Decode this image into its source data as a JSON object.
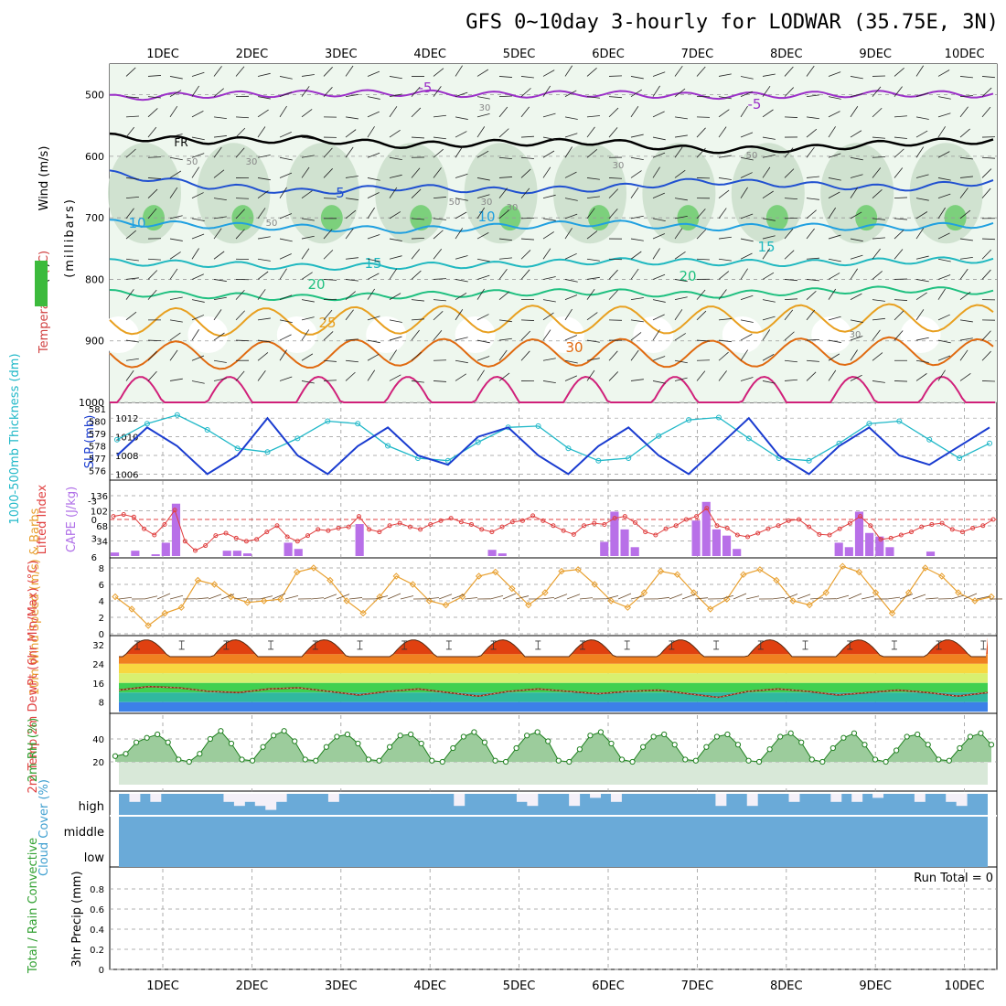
{
  "title": "GFS 0~10day 3-hourly for LODWAR (35.75E, 3N)",
  "dates": [
    "1DEC",
    "2DEC",
    "3DEC",
    "4DEC",
    "5DEC",
    "6DEC",
    "7DEC",
    "8DEC",
    "9DEC",
    "10DEC"
  ],
  "run_total": "Run Total = 0",
  "chart_data": [
    {
      "type": "line",
      "panel": "upper-air cross section",
      "ylabel_wind": "Wind (m/s)",
      "ylabel_temp": "Temperature (°C)",
      "ylabel_rh": "RH (%)",
      "ylabel_p": "(millibars)",
      "yticks": [
        "500",
        "600",
        "700",
        "800",
        "900",
        "1000"
      ],
      "ylim": [
        1000,
        450
      ],
      "freezing_label": "FR",
      "isotherms": [
        {
          "name": "-5",
          "color": "#9b30c8",
          "p": [
            505,
            500,
            498,
            497,
            500,
            498,
            502,
            500,
            498,
            500
          ]
        },
        {
          "name": "FR",
          "color": "#000000",
          "p": [
            568,
            575,
            572,
            582,
            578,
            576,
            590,
            588,
            578,
            574
          ]
        },
        {
          "name": "5",
          "color": "#2050d0",
          "p": [
            628,
            648,
            658,
            650,
            656,
            652,
            640,
            646,
            652,
            640
          ]
        },
        {
          "name": "10",
          "color": "#20a0e0",
          "p": [
            708,
            712,
            716,
            720,
            714,
            708,
            716,
            714,
            716,
            710
          ]
        },
        {
          "name": "15",
          "color": "#20b8c0",
          "p": [
            772,
            775,
            780,
            778,
            776,
            770,
            772,
            774,
            770,
            768
          ]
        },
        {
          "name": "20",
          "color": "#20c080",
          "p": [
            822,
            826,
            830,
            826,
            822,
            820,
            826,
            820,
            816,
            820
          ]
        },
        {
          "name": "25",
          "color": "#e8a020",
          "p": [
            866,
            870,
            868,
            866,
            864,
            866,
            866,
            864,
            862,
            864
          ]
        },
        {
          "name": "30",
          "color": "#e06a10",
          "p": [
            920,
            924,
            922,
            918,
            920,
            918,
            922,
            918,
            916,
            920
          ]
        }
      ],
      "isotherm_labels": [
        "-5",
        "-5",
        "5",
        "10",
        "10",
        "15",
        "15",
        "20",
        "20",
        "25",
        "30"
      ],
      "rh_labels": [
        "30",
        "50",
        "30",
        "50",
        "50",
        "30",
        "30",
        "50",
        "30",
        "30"
      ]
    },
    {
      "type": "line",
      "panel": "thickness and SLP",
      "ylabel_left": "1000-500mb Thickness (dm)",
      "ylabel_right": "SLP (mb)",
      "left_ticks": [
        "581",
        "580",
        "579",
        "578",
        "577",
        "576"
      ],
      "right_ticks": [
        "1012",
        "1010",
        "1008",
        "1006"
      ],
      "series": [
        {
          "name": "Thickness",
          "color": "#20b8c8",
          "values": [
            578.5,
            579.8,
            580.5,
            579.3,
            577.8,
            577.5,
            578.6,
            580.0,
            579.8,
            578.0,
            577.0,
            576.8,
            578.3,
            579.5,
            579.6,
            577.8,
            576.8,
            577.0,
            578.8,
            580.1,
            580.3,
            578.6,
            577.0,
            576.8,
            578.2,
            579.8,
            580.0,
            578.5,
            577.0,
            578.2
          ]
        },
        {
          "name": "SLP",
          "color": "#1a3cd0",
          "values": [
            1008,
            1011,
            1009,
            1006,
            1008,
            1012,
            1008,
            1006,
            1009,
            1011,
            1008,
            1007,
            1010,
            1011,
            1008,
            1006,
            1009,
            1011,
            1008,
            1006,
            1009,
            1012,
            1008,
            1006,
            1009,
            1011,
            1008,
            1007,
            1009,
            1011
          ]
        }
      ]
    },
    {
      "type": "bar",
      "panel": "CAPE and Lifted Index",
      "ylabel_left": "Lifted Index",
      "ylabel_right": "CAPE (J/kg)",
      "li_ticks": [
        "-3",
        "0",
        "3",
        "6"
      ],
      "cape_ticks": [
        "136",
        "102",
        "68",
        "34"
      ],
      "cape_values": [
        8,
        0,
        12,
        0,
        4,
        30,
        118,
        0,
        0,
        0,
        0,
        12,
        12,
        6,
        0,
        0,
        0,
        30,
        16,
        0,
        0,
        0,
        0,
        0,
        72,
        0,
        0,
        0,
        0,
        0,
        0,
        0,
        0,
        0,
        0,
        0,
        0,
        14,
        6,
        0,
        0,
        0,
        0,
        0,
        0,
        0,
        0,
        0,
        32,
        100,
        60,
        20,
        0,
        0,
        0,
        0,
        0,
        80,
        122,
        60,
        46,
        16,
        0,
        0,
        0,
        0,
        0,
        0,
        0,
        0,
        0,
        30,
        20,
        100,
        52,
        44,
        20,
        0,
        0,
        0,
        10,
        0,
        0,
        0,
        0,
        0,
        0
      ],
      "li_values": [
        -0.5,
        -0.8,
        -0.4,
        1.5,
        2.5,
        0.8,
        -1.5,
        3.5,
        5.0,
        4.2,
        2.6,
        2.2,
        3.0,
        3.5,
        3.2,
        2.0,
        1.0,
        2.8,
        3.5,
        2.6,
        1.6,
        1.8,
        1.4,
        1.2,
        -0.5,
        1.6,
        2.0,
        1.0,
        0.6,
        1.2,
        1.6,
        0.8,
        0.2,
        -0.2,
        0.4,
        0.8,
        1.6,
        2.0,
        1.2,
        0.4,
        0.2,
        -0.6,
        0.2,
        1.0,
        1.8,
        2.4,
        1.0,
        0.6,
        0.8,
        -0.2,
        -0.5,
        0.5,
        2.0,
        2.5,
        1.5,
        1.0,
        0.0,
        -0.5,
        -1.8,
        1.0,
        1.4,
        2.5,
        2.8,
        2.2,
        1.5,
        1.0,
        0.2,
        0.0,
        1.2,
        2.4,
        2.5,
        1.5,
        0.6,
        -0.5,
        1.0,
        3.2,
        3.0,
        2.5,
        2.0,
        1.2,
        0.8,
        0.6,
        1.6,
        2.0,
        1.4,
        1.0,
        0.0
      ]
    },
    {
      "type": "line",
      "panel": "10m wind",
      "ylabel": "10m Wind Speed (m/s) & Barbs",
      "yticks": [
        "8",
        "6",
        "4",
        "2",
        "0"
      ],
      "series": [
        {
          "name": "Speed",
          "color": "#e8a030",
          "values": [
            4.5,
            3.0,
            1.0,
            2.5,
            3.2,
            6.5,
            6.0,
            4.5,
            3.8,
            4.0,
            4.2,
            7.5,
            8.0,
            6.5,
            4.0,
            2.5,
            4.5,
            7.0,
            6.0,
            4.0,
            3.5,
            4.5,
            7.0,
            7.5,
            5.5,
            3.5,
            5.0,
            7.6,
            7.8,
            6.0,
            4.0,
            3.2,
            5.0,
            7.6,
            7.2,
            5.0,
            3.0,
            4.2,
            7.2,
            7.8,
            6.5,
            4.0,
            3.5,
            5.0,
            8.2,
            7.5,
            5.0,
            2.5,
            5.0,
            8.0,
            7.0,
            5.0,
            4.0,
            4.5
          ]
        }
      ]
    },
    {
      "type": "area",
      "panel": "2m temperature",
      "ylabel": "2m Temp 2m DewPt (6hr Min/Max) (°C)",
      "yticks": [
        "32",
        "24",
        "16",
        "8"
      ],
      "temp_max": 34,
      "temp_min": 27,
      "dew_values": [
        13,
        14.5,
        14,
        12.5,
        12,
        13.5,
        14,
        12.5,
        11,
        12.5,
        13.5,
        12,
        10.5,
        12.5,
        13.5,
        12.5,
        11.5,
        12.5,
        13,
        11.5,
        10,
        12.5,
        13.5,
        12.5,
        11,
        12,
        13,
        12,
        10.5,
        12
      ]
    },
    {
      "type": "area",
      "panel": "2m relative humidity",
      "ylabel": "2m RH (%)",
      "yticks": [
        "40",
        "20"
      ],
      "values": [
        25,
        27,
        37,
        41,
        44,
        37,
        22,
        20,
        27,
        40,
        47,
        36,
        22,
        21,
        33,
        43,
        47,
        38,
        22,
        21,
        33,
        42,
        44,
        36,
        22,
        21,
        33,
        43,
        44,
        36,
        21,
        20,
        32,
        42,
        46,
        37,
        21,
        20,
        32,
        43,
        46,
        38,
        21,
        20,
        31,
        43,
        46,
        36,
        22,
        20,
        33,
        42,
        44,
        35,
        22,
        21,
        33,
        42,
        44,
        35,
        21,
        20,
        31,
        42,
        45,
        37,
        22,
        20,
        32,
        41,
        45,
        35,
        22,
        20,
        30,
        42,
        44,
        35,
        22,
        21,
        32,
        42,
        45,
        35
      ]
    },
    {
      "type": "bar",
      "panel": "cloud cover",
      "ylabel": "Cloud Cover (%)",
      "levels": [
        "high",
        "middle",
        "low"
      ],
      "high_values": [
        100,
        60,
        100,
        60,
        100,
        100,
        100,
        100,
        100,
        100,
        60,
        40,
        60,
        40,
        20,
        60,
        100,
        100,
        100,
        100,
        60,
        100,
        100,
        100,
        100,
        100,
        100,
        100,
        100,
        100,
        100,
        100,
        40,
        100,
        100,
        100,
        100,
        100,
        60,
        40,
        100,
        100,
        100,
        40,
        100,
        80,
        100,
        60,
        100,
        100,
        100,
        100,
        100,
        100,
        100,
        100,
        100,
        40,
        100,
        100,
        40,
        100,
        100,
        100,
        60,
        100,
        100,
        100,
        60,
        100,
        60,
        100,
        80,
        100,
        100,
        100,
        60,
        100,
        100,
        60,
        40,
        100,
        100
      ]
    },
    {
      "type": "bar",
      "panel": "precipitation",
      "ylabel_left": "Total / Rain Convective",
      "ylabel": "3hr Precip (mm)",
      "yticks": [
        "0.8",
        "0.6",
        "0.4",
        "0.2",
        "0"
      ],
      "values": []
    }
  ]
}
